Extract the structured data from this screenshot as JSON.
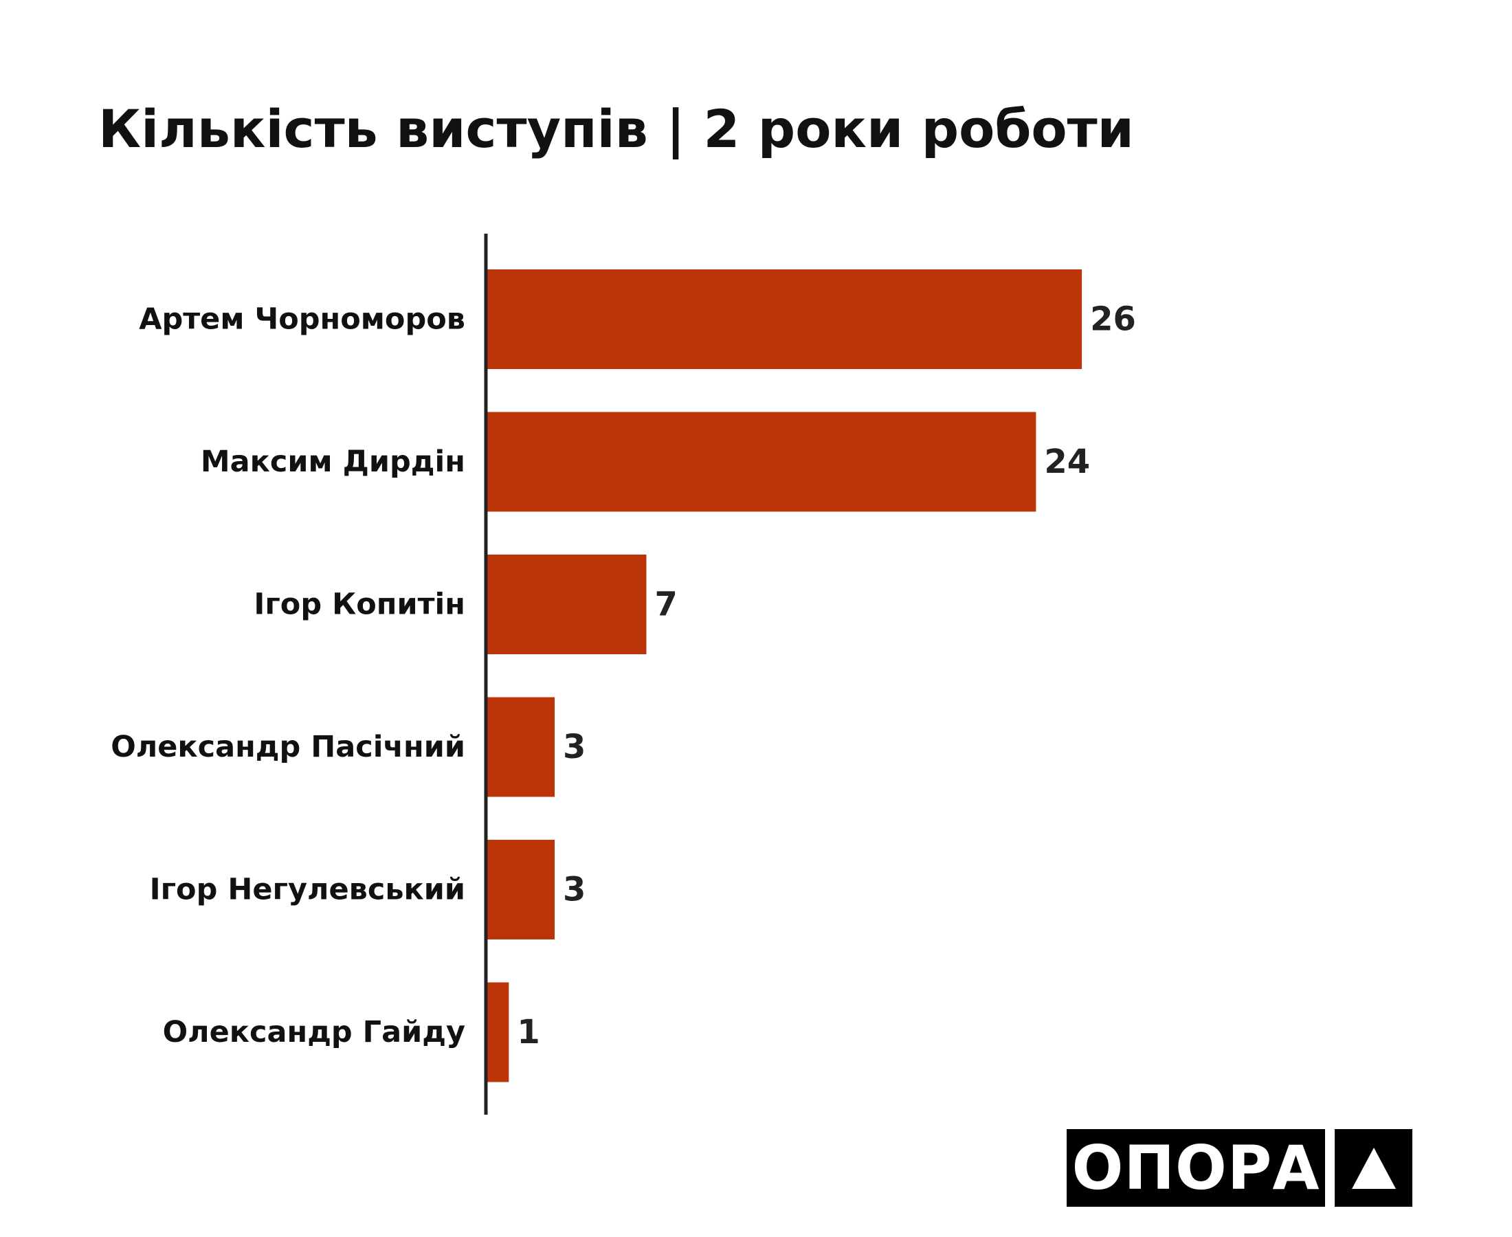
{
  "chart_data": {
    "type": "bar",
    "orientation": "horizontal",
    "title": "Кількість виступів | 2 роки роботи",
    "categories": [
      "Артем Чорноморов",
      "Максим Дирдін",
      "Ігор Копитін",
      "Олександр Пасічний",
      "Ігор Негулевський",
      "Олександр Гайду"
    ],
    "values": [
      26,
      24,
      7,
      3,
      3,
      1
    ],
    "data_labels": [
      "26",
      "24",
      "7",
      "3",
      "3",
      "1"
    ],
    "xlim": [
      0,
      30
    ],
    "grid": false,
    "legend": "none",
    "bar_color": "#BC3508",
    "axis_color": "#222222"
  },
  "logo": {
    "text": "ОПОРА",
    "mark": "triangle-icon"
  }
}
